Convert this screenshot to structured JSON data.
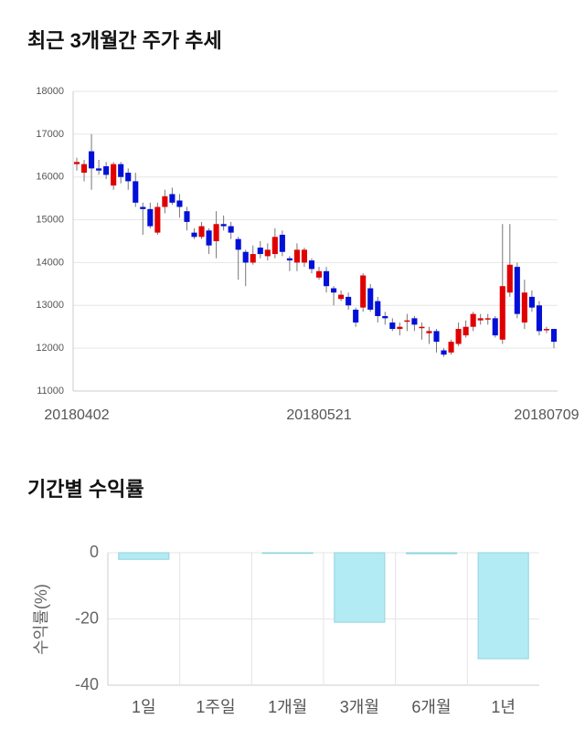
{
  "chart_data": [
    {
      "type": "candlestick",
      "title": "최근 3개월간 주가 추세",
      "categories": [
        "20180402",
        null,
        null,
        null,
        null,
        null,
        null,
        null,
        null,
        null,
        null,
        null,
        null,
        null,
        null,
        null,
        null,
        null,
        null,
        null,
        null,
        null,
        null,
        null,
        null,
        null,
        null,
        null,
        null,
        null,
        null,
        null,
        null,
        "20180521",
        null,
        null,
        null,
        null,
        null,
        null,
        null,
        null,
        null,
        null,
        null,
        null,
        null,
        null,
        null,
        null,
        null,
        null,
        null,
        null,
        null,
        null,
        null,
        null,
        null,
        null,
        null,
        null,
        null,
        null,
        "20180709",
        null
      ],
      "open": [
        16300,
        16100,
        16600,
        16200,
        16250,
        15800,
        16300,
        16100,
        15900,
        15300,
        15250,
        14700,
        15300,
        15600,
        15450,
        15200,
        14700,
        14600,
        14750,
        14500,
        14900,
        14850,
        14550,
        14250,
        14000,
        14350,
        14150,
        14200,
        14650,
        14100,
        14000,
        14000,
        14050,
        13650,
        13800,
        13400,
        13150,
        13200,
        12900,
        12950,
        13400,
        13100,
        12750,
        12600,
        12450,
        12650,
        12700,
        12500,
        12350,
        12400,
        11950,
        11900,
        12100,
        12300,
        12500,
        12650,
        12700,
        12700,
        12200,
        13300,
        13900,
        12600,
        13200,
        13000,
        12450,
        12450
      ],
      "high": [
        16450,
        16400,
        17000,
        16400,
        16350,
        16350,
        16350,
        16200,
        16100,
        15400,
        15400,
        15400,
        15700,
        15750,
        15600,
        15300,
        14800,
        14950,
        14800,
        15200,
        15100,
        14950,
        14600,
        14300,
        14400,
        14500,
        14450,
        14800,
        14750,
        14150,
        14450,
        14350,
        14100,
        13900,
        13900,
        13450,
        13350,
        13300,
        12950,
        13750,
        13500,
        13200,
        12850,
        12700,
        12600,
        12800,
        12750,
        12600,
        12500,
        12450,
        12000,
        12200,
        12600,
        12650,
        12850,
        12800,
        12800,
        12750,
        14900,
        14900,
        14000,
        13600,
        13350,
        13100,
        12500,
        12450
      ],
      "low": [
        16150,
        15900,
        15700,
        16050,
        15950,
        15700,
        15850,
        15700,
        15300,
        14650,
        14800,
        14650,
        15150,
        15350,
        15050,
        14750,
        14550,
        14550,
        14200,
        14100,
        14750,
        14550,
        13600,
        13450,
        13950,
        14100,
        14050,
        14100,
        14150,
        13800,
        13800,
        13900,
        13750,
        13600,
        13300,
        13000,
        13100,
        12900,
        12500,
        12850,
        12850,
        12600,
        12550,
        12400,
        12300,
        12400,
        12400,
        12200,
        12100,
        11900,
        11800,
        11850,
        12050,
        12250,
        12400,
        12550,
        12550,
        12250,
        12100,
        13200,
        12700,
        12450,
        12850,
        12300,
        12350,
        12000
      ],
      "close": [
        16350,
        16300,
        16200,
        16150,
        16050,
        16300,
        16000,
        15900,
        15400,
        15250,
        14850,
        15300,
        15550,
        15400,
        15300,
        14950,
        14600,
        14850,
        14400,
        14900,
        14850,
        14700,
        14300,
        14000,
        14200,
        14200,
        14300,
        14600,
        14250,
        14050,
        14300,
        14300,
        13850,
        13800,
        13450,
        13300,
        13250,
        13000,
        12600,
        13700,
        12900,
        12750,
        12700,
        12450,
        12500,
        12650,
        12550,
        12500,
        12400,
        12150,
        11850,
        12150,
        12450,
        12500,
        12800,
        12700,
        12700,
        12300,
        13450,
        13950,
        12800,
        13300,
        12950,
        12400,
        12450,
        12150
      ],
      "up_color": "#e00000",
      "down_color": "#0010d8",
      "ylim": [
        11000,
        18000
      ],
      "yticks": [
        11000,
        12000,
        13000,
        14000,
        15000,
        16000,
        17000,
        18000
      ],
      "grid": true
    },
    {
      "type": "bar",
      "title": "기간별 수익률",
      "y_label": "수익률(%)",
      "categories": [
        "1일",
        "1주일",
        "1개월",
        "3개월",
        "6개월",
        "1년"
      ],
      "values": [
        -2,
        0,
        -0.2,
        -21,
        -0.3,
        -32
      ],
      "color": "#b3ebf4",
      "ylim": [
        -40,
        0
      ],
      "yticks": [
        0,
        -20,
        -40
      ],
      "grid": true
    }
  ]
}
